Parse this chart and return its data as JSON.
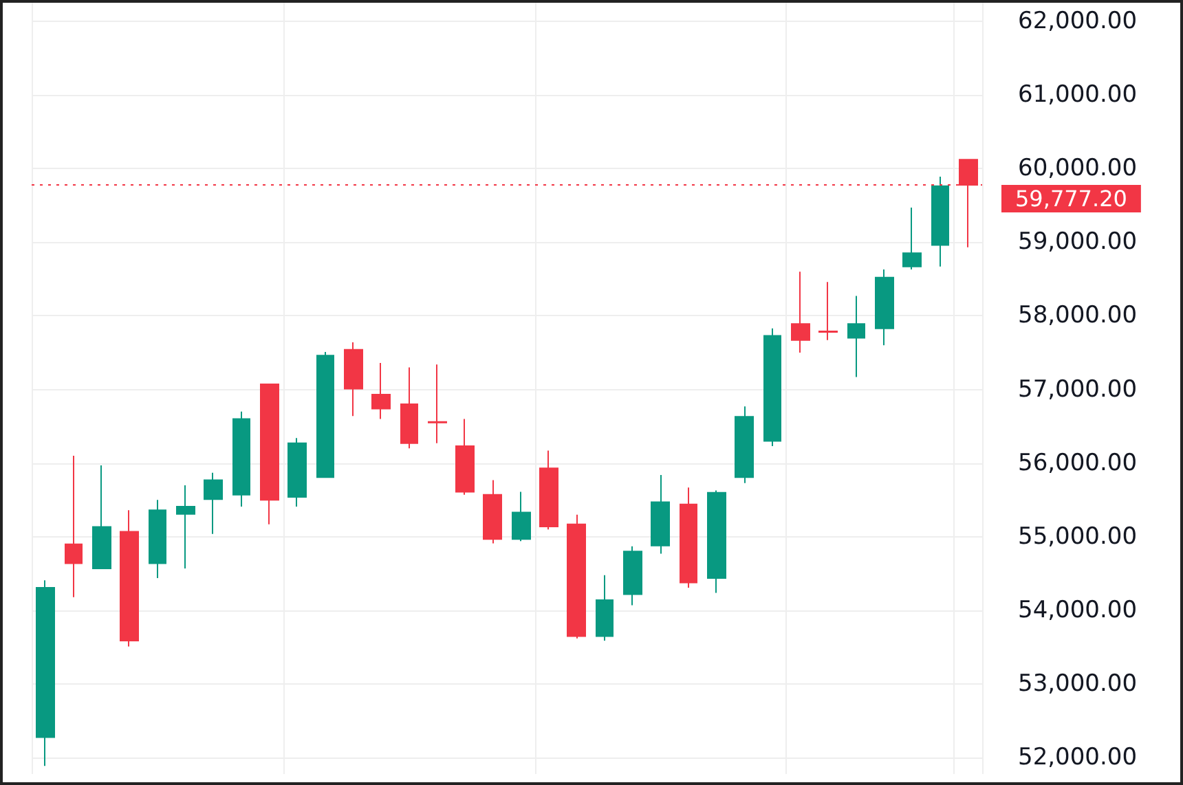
{
  "chart_data": {
    "type": "candlestick",
    "categories": [
      null,
      null,
      null,
      null,
      null,
      null,
      null,
      null,
      null,
      null,
      null,
      null,
      null,
      null,
      null,
      null,
      null,
      null,
      null,
      null,
      null,
      null,
      null,
      null,
      null,
      null,
      null,
      null,
      null,
      null,
      null,
      null,
      null,
      null
    ],
    "ohlc": [
      [
        52280,
        54410,
        51890,
        54310
      ],
      [
        54900,
        56100,
        54180,
        54640
      ],
      [
        54570,
        55970,
        54570,
        55135
      ],
      [
        55070,
        55360,
        53510,
        53590
      ],
      [
        54640,
        55500,
        54440,
        55360
      ],
      [
        55310,
        55700,
        54570,
        55410
      ],
      [
        55510,
        55870,
        55040,
        55770
      ],
      [
        55570,
        56700,
        55410,
        56600
      ],
      [
        57070,
        57070,
        55170,
        55500
      ],
      [
        55540,
        56340,
        55410,
        56270
      ],
      [
        55810,
        57510,
        55800,
        57460
      ],
      [
        57540,
        57640,
        56640,
        57010
      ],
      [
        56930,
        57360,
        56600,
        56740
      ],
      [
        56800,
        57300,
        56200,
        56270
      ],
      [
        56560,
        57340,
        56270,
        56550
      ],
      [
        56230,
        56600,
        55570,
        55610
      ],
      [
        55570,
        55770,
        54910,
        54970
      ],
      [
        54970,
        55610,
        54940,
        55330
      ],
      [
        55930,
        56170,
        55100,
        55140
      ],
      [
        55170,
        55300,
        53620,
        53650
      ],
      [
        53650,
        54480,
        53590,
        54140
      ],
      [
        54220,
        54870,
        54070,
        54800
      ],
      [
        54880,
        55840,
        54770,
        55470
      ],
      [
        55440,
        55670,
        54310,
        54380
      ],
      [
        54440,
        55630,
        54240,
        55600
      ],
      [
        55810,
        56770,
        55730,
        56630
      ],
      [
        56300,
        57830,
        56230,
        57730
      ],
      [
        57890,
        58600,
        57500,
        57670
      ],
      [
        57790,
        58460,
        57670,
        57780
      ],
      [
        57700,
        58270,
        57170,
        57890
      ],
      [
        57830,
        58630,
        57600,
        58520
      ],
      [
        58670,
        59470,
        58630,
        58850
      ],
      [
        58960,
        59890,
        58670,
        59760
      ],
      [
        60120,
        60120,
        58930,
        59777.2
      ]
    ],
    "colors": [
      "#089981",
      "#f23645",
      "#089981",
      "#f23645",
      "#089981",
      "#089981",
      "#089981",
      "#089981",
      "#f23645",
      "#089981",
      "#089981",
      "#f23645",
      "#f23645",
      "#f23645",
      "#f23645",
      "#f23645",
      "#f23645",
      "#089981",
      "#f23645",
      "#f23645",
      "#089981",
      "#089981",
      "#089981",
      "#f23645",
      "#089981",
      "#089981",
      "#089981",
      "#f23645",
      "#f23645",
      "#089981",
      "#089981",
      "#089981",
      "#089981",
      "#f23645"
    ],
    "ylim": [
      51780,
      62250
    ],
    "yticks": [
      {
        "value": 52000,
        "label": "52,000.00"
      },
      {
        "value": 53000,
        "label": "53,000.00"
      },
      {
        "value": 54000,
        "label": "54,000.00"
      },
      {
        "value": 55000,
        "label": "55,000.00"
      },
      {
        "value": 56000,
        "label": "56,000.00"
      },
      {
        "value": 57000,
        "label": "57,000.00"
      },
      {
        "value": 58000,
        "label": "58,000.00"
      },
      {
        "value": 59000,
        "label": "59,000.00"
      },
      {
        "value": 60000,
        "label": "60,000.00"
      },
      {
        "value": 61000,
        "label": "61,000.00"
      },
      {
        "value": 62000,
        "label": "62,000.00"
      }
    ],
    "ref_lines": [
      {
        "axis": "y",
        "value": 59777.2,
        "label": "59,777.20",
        "color": "#f23645",
        "line_style": "dotted"
      }
    ],
    "grid": true,
    "tick_labels": "y"
  }
}
